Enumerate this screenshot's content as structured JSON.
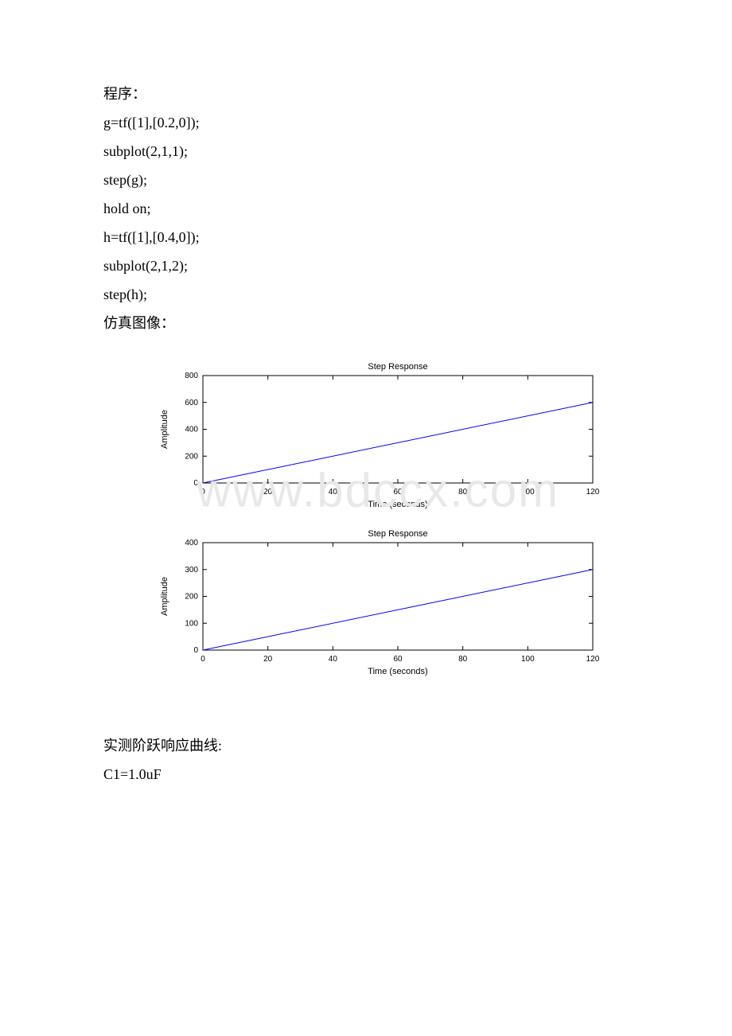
{
  "code_block": {
    "label": "程序：",
    "lines": [
      "g=tf([1],[0.2,0]);",
      "subplot(2,1,1);",
      "step(g);",
      " hold on;",
      "h=tf([1],[0.4,0]);",
      "subplot(2,1,2);",
      "step(h);"
    ],
    "sim_label": "仿真图像："
  },
  "chart1": {
    "type": "line",
    "title": "Step Response",
    "xlabel": "Time (seconds)",
    "ylabel": "Amplitude",
    "xlim": [
      0,
      120
    ],
    "ylim": [
      0,
      800
    ],
    "xticks": [
      0,
      20,
      40,
      60,
      80,
      100,
      120
    ],
    "yticks": [
      0,
      200,
      400,
      600,
      800
    ],
    "line_color": "#0000ff",
    "line_width": 1,
    "background_color": "#ffffff",
    "axis_color": "#000000",
    "tick_fontsize": 10,
    "label_fontsize": 11,
    "title_fontsize": 11,
    "data_start": [
      0,
      0
    ],
    "data_end": [
      120,
      600
    ]
  },
  "chart2": {
    "type": "line",
    "title": "Step Response",
    "xlabel": "Time (seconds)",
    "ylabel": "Amplitude",
    "xlim": [
      0,
      120
    ],
    "ylim": [
      0,
      400
    ],
    "xticks": [
      0,
      20,
      40,
      60,
      80,
      100,
      120
    ],
    "yticks": [
      0,
      100,
      200,
      300,
      400
    ],
    "line_color": "#0000ff",
    "line_width": 1,
    "background_color": "#ffffff",
    "axis_color": "#000000",
    "tick_fontsize": 10,
    "label_fontsize": 11,
    "title_fontsize": 11,
    "data_start": [
      0,
      0
    ],
    "data_end": [
      120,
      300
    ]
  },
  "watermark_text": "www.bdccx.com",
  "bottom_text": {
    "line1": "实测阶跃响应曲线:",
    "line2": "C1=1.0uF"
  }
}
